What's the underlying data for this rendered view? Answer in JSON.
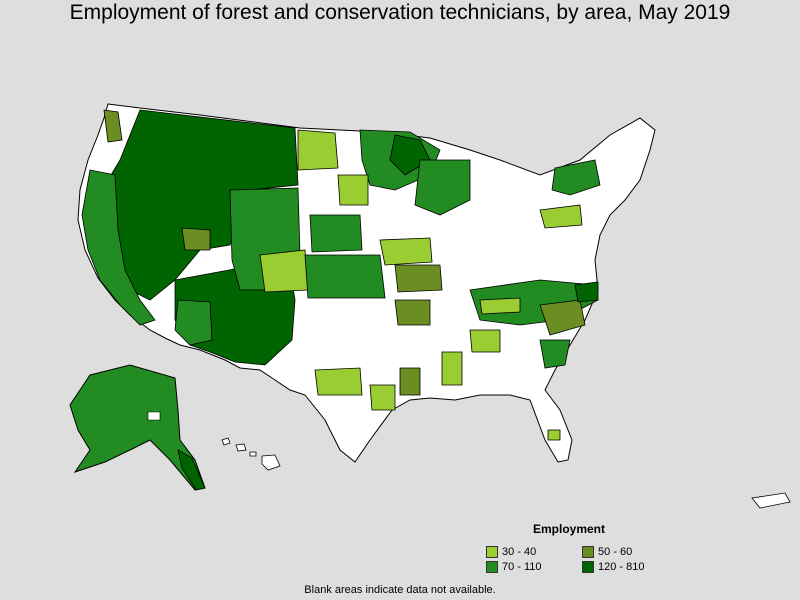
{
  "title": "Employment of forest and conservation technicians, by area, May 2019",
  "legend": {
    "title": "Employment",
    "items": [
      {
        "label": "30 - 40",
        "color": "#9acd32"
      },
      {
        "label": "50 - 60",
        "color": "#6b8e23"
      },
      {
        "label": "70 - 110",
        "color": "#228b22"
      },
      {
        "label": "120 - 810",
        "color": "#006400"
      }
    ]
  },
  "footnote": "Blank areas indicate data not available.",
  "colors": {
    "background": "#dedede",
    "no_data": "#ffffff",
    "border": "#000000"
  }
}
